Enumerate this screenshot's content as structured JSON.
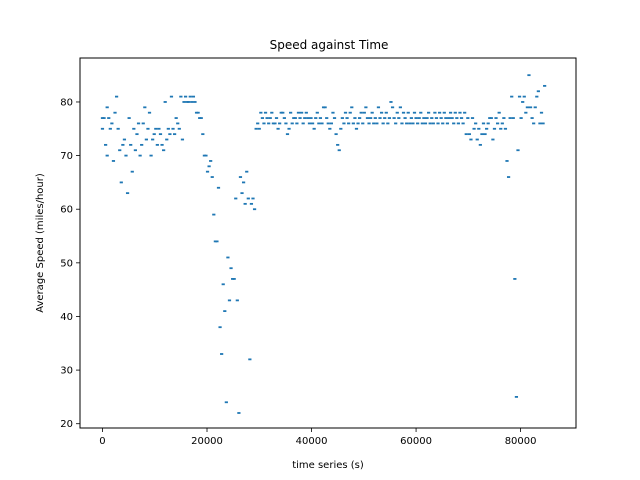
{
  "chart_data": {
    "type": "scatter",
    "title": "Speed against Time",
    "xlabel": "time series (s)",
    "ylabel": "Average Speed (miles/hour)",
    "xlim": [
      -4300,
      90600
    ],
    "ylim": [
      19.2,
      88.2
    ],
    "xticks": [
      0,
      20000,
      40000,
      60000,
      80000
    ],
    "yticks": [
      20,
      30,
      40,
      50,
      60,
      70,
      80
    ],
    "grid": false,
    "series_color": "#1f77b4",
    "points": [
      [
        0,
        75
      ],
      [
        0,
        77
      ],
      [
        300,
        77
      ],
      [
        600,
        72
      ],
      [
        900,
        70
      ],
      [
        900,
        79
      ],
      [
        1200,
        77
      ],
      [
        1500,
        75
      ],
      [
        1800,
        76
      ],
      [
        2100,
        69
      ],
      [
        2400,
        78
      ],
      [
        2700,
        81
      ],
      [
        3000,
        75
      ],
      [
        3300,
        71
      ],
      [
        3600,
        65
      ],
      [
        3900,
        72
      ],
      [
        4200,
        73
      ],
      [
        4500,
        70
      ],
      [
        4800,
        63
      ],
      [
        5100,
        77
      ],
      [
        5400,
        72
      ],
      [
        5700,
        67
      ],
      [
        6000,
        75
      ],
      [
        6300,
        71
      ],
      [
        6600,
        74
      ],
      [
        6900,
        76
      ],
      [
        7200,
        70
      ],
      [
        7500,
        72
      ],
      [
        7800,
        76
      ],
      [
        8100,
        79
      ],
      [
        8400,
        73
      ],
      [
        8700,
        75
      ],
      [
        9000,
        78
      ],
      [
        9300,
        70
      ],
      [
        9600,
        73
      ],
      [
        9900,
        74
      ],
      [
        10200,
        75
      ],
      [
        10500,
        72
      ],
      [
        10800,
        75
      ],
      [
        11100,
        74
      ],
      [
        11400,
        72
      ],
      [
        11700,
        71
      ],
      [
        12000,
        80
      ],
      [
        12300,
        73
      ],
      [
        12600,
        75
      ],
      [
        12900,
        74
      ],
      [
        13200,
        81
      ],
      [
        13500,
        75
      ],
      [
        13800,
        74
      ],
      [
        14100,
        77
      ],
      [
        14400,
        76
      ],
      [
        14700,
        75
      ],
      [
        15000,
        81
      ],
      [
        15300,
        73
      ],
      [
        15600,
        80
      ],
      [
        15900,
        81
      ],
      [
        16200,
        80
      ],
      [
        16500,
        80
      ],
      [
        16800,
        81
      ],
      [
        17100,
        80
      ],
      [
        17400,
        81
      ],
      [
        17700,
        80
      ],
      [
        18000,
        78
      ],
      [
        18300,
        78
      ],
      [
        18600,
        77
      ],
      [
        18900,
        77
      ],
      [
        19200,
        74
      ],
      [
        19500,
        70
      ],
      [
        19800,
        70
      ],
      [
        20100,
        67
      ],
      [
        20400,
        68
      ],
      [
        20700,
        69
      ],
      [
        21000,
        66
      ],
      [
        21300,
        59
      ],
      [
        21600,
        54
      ],
      [
        21900,
        54
      ],
      [
        22200,
        64
      ],
      [
        22500,
        38
      ],
      [
        22800,
        33
      ],
      [
        23100,
        46
      ],
      [
        23400,
        41
      ],
      [
        23700,
        24
      ],
      [
        24000,
        51
      ],
      [
        24300,
        43
      ],
      [
        24600,
        49
      ],
      [
        24900,
        47
      ],
      [
        25200,
        47
      ],
      [
        25500,
        62
      ],
      [
        25800,
        43
      ],
      [
        26100,
        22
      ],
      [
        26400,
        66
      ],
      [
        26700,
        63
      ],
      [
        27000,
        65
      ],
      [
        27300,
        61
      ],
      [
        27600,
        67
      ],
      [
        27900,
        62
      ],
      [
        28200,
        32
      ],
      [
        28500,
        61
      ],
      [
        28800,
        62
      ],
      [
        29100,
        60
      ],
      [
        29400,
        75
      ],
      [
        29700,
        76
      ],
      [
        30000,
        75
      ],
      [
        30300,
        78
      ],
      [
        30600,
        77
      ],
      [
        30900,
        76
      ],
      [
        31200,
        78
      ],
      [
        31500,
        77
      ],
      [
        31800,
        76
      ],
      [
        32100,
        77
      ],
      [
        32400,
        78
      ],
      [
        32700,
        76
      ],
      [
        33000,
        76
      ],
      [
        33300,
        77
      ],
      [
        33600,
        75
      ],
      [
        33900,
        76
      ],
      [
        34200,
        78
      ],
      [
        34500,
        78
      ],
      [
        34800,
        77
      ],
      [
        35100,
        76
      ],
      [
        35400,
        74
      ],
      [
        35700,
        75
      ],
      [
        36000,
        78
      ],
      [
        36300,
        76
      ],
      [
        36600,
        77
      ],
      [
        36900,
        77
      ],
      [
        37200,
        76
      ],
      [
        37500,
        78
      ],
      [
        37800,
        77
      ],
      [
        38100,
        78
      ],
      [
        38400,
        76
      ],
      [
        38700,
        77
      ],
      [
        39000,
        78
      ],
      [
        39300,
        77
      ],
      [
        39600,
        76
      ],
      [
        39900,
        77
      ],
      [
        40200,
        76
      ],
      [
        40500,
        75
      ],
      [
        40800,
        77
      ],
      [
        41100,
        78
      ],
      [
        41400,
        76
      ],
      [
        41700,
        77
      ],
      [
        42000,
        76
      ],
      [
        42300,
        79
      ],
      [
        42600,
        79
      ],
      [
        42900,
        77
      ],
      [
        43200,
        76
      ],
      [
        43500,
        75
      ],
      [
        43800,
        76
      ],
      [
        44100,
        78
      ],
      [
        44400,
        77
      ],
      [
        44700,
        74
      ],
      [
        45000,
        72
      ],
      [
        45300,
        71
      ],
      [
        45600,
        75
      ],
      [
        45900,
        77
      ],
      [
        46200,
        76
      ],
      [
        46500,
        78
      ],
      [
        46800,
        77
      ],
      [
        47100,
        76
      ],
      [
        47400,
        78
      ],
      [
        47700,
        79
      ],
      [
        48000,
        76
      ],
      [
        48300,
        77
      ],
      [
        48600,
        75
      ],
      [
        48900,
        76
      ],
      [
        49200,
        77
      ],
      [
        49500,
        78
      ],
      [
        49800,
        76
      ],
      [
        50100,
        78
      ],
      [
        50400,
        79
      ],
      [
        50700,
        77
      ],
      [
        51000,
        76
      ],
      [
        51300,
        77
      ],
      [
        51600,
        78
      ],
      [
        51900,
        76
      ],
      [
        52200,
        77
      ],
      [
        52500,
        76
      ],
      [
        52800,
        79
      ],
      [
        53100,
        77
      ],
      [
        53400,
        78
      ],
      [
        53700,
        76
      ],
      [
        54000,
        77
      ],
      [
        54300,
        78
      ],
      [
        54600,
        76
      ],
      [
        54900,
        77
      ],
      [
        55200,
        80
      ],
      [
        55500,
        79
      ],
      [
        55800,
        77
      ],
      [
        56100,
        76
      ],
      [
        56400,
        78
      ],
      [
        56700,
        77
      ],
      [
        57000,
        79
      ],
      [
        57300,
        76
      ],
      [
        57600,
        78
      ],
      [
        57900,
        77
      ],
      [
        58200,
        76
      ],
      [
        58500,
        78
      ],
      [
        58800,
        76
      ],
      [
        59100,
        77
      ],
      [
        59400,
        76
      ],
      [
        59700,
        78
      ],
      [
        60000,
        77
      ],
      [
        60300,
        76
      ],
      [
        60600,
        77
      ],
      [
        60900,
        78
      ],
      [
        61200,
        76
      ],
      [
        61500,
        77
      ],
      [
        61800,
        76
      ],
      [
        62100,
        77
      ],
      [
        62400,
        78
      ],
      [
        62700,
        76
      ],
      [
        63000,
        77
      ],
      [
        63300,
        76
      ],
      [
        63600,
        78
      ],
      [
        63900,
        77
      ],
      [
        64200,
        76
      ],
      [
        64500,
        78
      ],
      [
        64800,
        77
      ],
      [
        65100,
        76
      ],
      [
        65400,
        78
      ],
      [
        65700,
        77
      ],
      [
        66000,
        76
      ],
      [
        66300,
        77
      ],
      [
        66600,
        78
      ],
      [
        66900,
        77
      ],
      [
        67200,
        76
      ],
      [
        67500,
        78
      ],
      [
        67800,
        77
      ],
      [
        68100,
        76
      ],
      [
        68400,
        78
      ],
      [
        68700,
        77
      ],
      [
        69000,
        76
      ],
      [
        69300,
        78
      ],
      [
        69600,
        74
      ],
      [
        69900,
        77
      ],
      [
        70200,
        74
      ],
      [
        70500,
        73
      ],
      [
        70800,
        77
      ],
      [
        71100,
        75
      ],
      [
        71400,
        76
      ],
      [
        71700,
        73
      ],
      [
        72000,
        75
      ],
      [
        72300,
        72
      ],
      [
        72600,
        74
      ],
      [
        72900,
        76
      ],
      [
        73200,
        74
      ],
      [
        73500,
        75
      ],
      [
        73800,
        76
      ],
      [
        74100,
        77
      ],
      [
        74400,
        77
      ],
      [
        74700,
        73
      ],
      [
        75000,
        75
      ],
      [
        75300,
        77
      ],
      [
        75600,
        76
      ],
      [
        75900,
        78
      ],
      [
        76200,
        75
      ],
      [
        76500,
        76
      ],
      [
        76800,
        77
      ],
      [
        77100,
        75
      ],
      [
        77400,
        69
      ],
      [
        77700,
        66
      ],
      [
        78000,
        77
      ],
      [
        78300,
        81
      ],
      [
        78600,
        77
      ],
      [
        78900,
        47
      ],
      [
        79200,
        25
      ],
      [
        79500,
        71
      ],
      [
        79800,
        81
      ],
      [
        80100,
        77
      ],
      [
        80400,
        80
      ],
      [
        80700,
        81
      ],
      [
        81000,
        78
      ],
      [
        81300,
        79
      ],
      [
        81600,
        85
      ],
      [
        81900,
        79
      ],
      [
        82200,
        77
      ],
      [
        82500,
        76
      ],
      [
        82800,
        79
      ],
      [
        83100,
        81
      ],
      [
        83400,
        82
      ],
      [
        83700,
        76
      ],
      [
        84000,
        78
      ],
      [
        84300,
        76
      ],
      [
        84600,
        83
      ]
    ]
  }
}
